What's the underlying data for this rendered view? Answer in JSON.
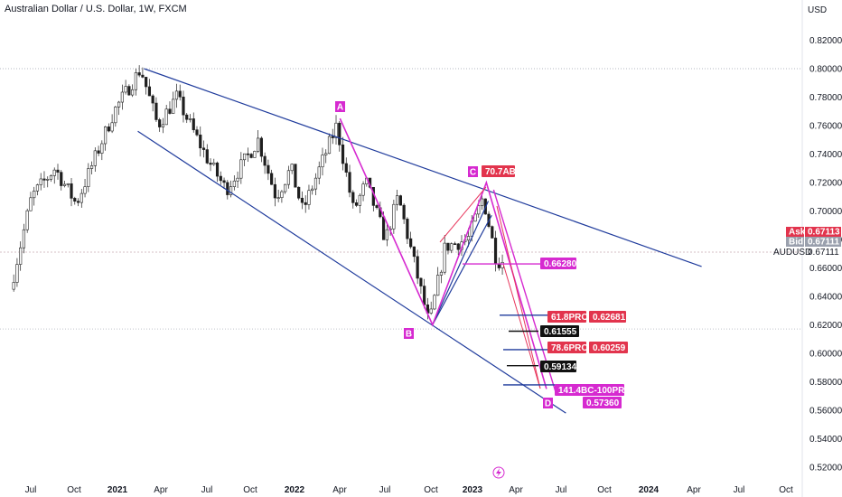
{
  "header": {
    "title": "Australian Dollar / U.S. Dollar, 1W, FXCM"
  },
  "price_axis": {
    "currency": "USD",
    "ticks": [
      "0.82000",
      "0.80000",
      "0.78000",
      "0.76000",
      "0.74000",
      "0.72000",
      "0.70000",
      "0.68000",
      "0.66000",
      "0.64000",
      "0.62000",
      "0.60000",
      "0.58000",
      "0.56000",
      "0.54000",
      "0.52000"
    ]
  },
  "quote": {
    "ask_label": "Ask",
    "ask_value": "0.67113",
    "bid_label": "Bid",
    "bid_value": "0.67111",
    "symbol": "AUDUSD",
    "last_value": "0.67111"
  },
  "time_axis": {
    "labels": [
      {
        "text": "Jul",
        "year": false
      },
      {
        "text": "Oct",
        "year": false
      },
      {
        "text": "2021",
        "year": true
      },
      {
        "text": "Apr",
        "year": false
      },
      {
        "text": "Jul",
        "year": false
      },
      {
        "text": "Oct",
        "year": false
      },
      {
        "text": "2022",
        "year": true
      },
      {
        "text": "Apr",
        "year": false
      },
      {
        "text": "Jul",
        "year": false
      },
      {
        "text": "Oct",
        "year": false
      },
      {
        "text": "2023",
        "year": true
      },
      {
        "text": "Apr",
        "year": false
      },
      {
        "text": "Jul",
        "year": false
      },
      {
        "text": "Oct",
        "year": false
      },
      {
        "text": "2024",
        "year": true
      },
      {
        "text": "Apr",
        "year": false
      },
      {
        "text": "Jul",
        "year": false
      },
      {
        "text": "Oct",
        "year": false
      }
    ]
  },
  "chart_data": {
    "type": "candlestick",
    "title": "Australian Dollar / U.S. Dollar, 1W, FXCM",
    "ylim": [
      0.51,
      0.835
    ],
    "price_path": [
      [
        "2020-06-01",
        0.645
      ],
      [
        "2020-07-15",
        0.71
      ],
      [
        "2020-09-01",
        0.73
      ],
      [
        "2020-10-15",
        0.705
      ],
      [
        "2021-01-01",
        0.77
      ],
      [
        "2021-02-25",
        0.8
      ],
      [
        "2021-04-01",
        0.76
      ],
      [
        "2021-05-10",
        0.78
      ],
      [
        "2021-06-15",
        0.755
      ],
      [
        "2021-07-15",
        0.735
      ],
      [
        "2021-08-20",
        0.715
      ],
      [
        "2021-10-25",
        0.75
      ],
      [
        "2021-12-01",
        0.71
      ],
      [
        "2022-01-01",
        0.73
      ],
      [
        "2022-01-25",
        0.7
      ],
      [
        "2022-04-05",
        0.76
      ],
      [
        "2022-05-10",
        0.7
      ],
      [
        "2022-06-05",
        0.72
      ],
      [
        "2022-07-15",
        0.68
      ],
      [
        "2022-08-10",
        0.71
      ],
      [
        "2022-10-13",
        0.62
      ],
      [
        "2022-11-15",
        0.675
      ],
      [
        "2023-01-01",
        0.68
      ],
      [
        "2023-02-01",
        0.71
      ],
      [
        "2023-03-01",
        0.665
      ],
      [
        "2023-03-10",
        0.665
      ]
    ],
    "trendlines": [
      {
        "from": [
          "2021-02-25",
          0.8
        ],
        "to": [
          "2024-04-20",
          0.661
        ]
      },
      {
        "from": [
          "2021-02-12",
          0.756
        ],
        "to": [
          "2023-07-15",
          0.558
        ]
      },
      {
        "from": [
          "2022-10-13",
          0.62
        ],
        "to": [
          "2023-02-05",
          0.707
        ]
      },
      {
        "from": [
          "2022-10-13",
          0.62
        ],
        "to": [
          "2023-02-12",
          0.697
        ]
      }
    ],
    "harmonic_points": [
      {
        "label": "A",
        "date": "2022-04-05",
        "value": 0.765
      },
      {
        "label": "B",
        "date": "2022-10-13",
        "value": 0.62
      },
      {
        "label": "C",
        "date": "2023-02-01",
        "value": 0.72
      },
      {
        "label": "D",
        "date": "2023-06-05",
        "value": 0.575
      }
    ],
    "annotations": {
      "c_tag": "70.7AB",
      "level_0_6628": "0.66280",
      "pro_61_8": "61.8PRO",
      "pro_61_8_value": "0.62681",
      "level_0_61555": "0.61555",
      "pro_78_6": "78.6PRO",
      "pro_78_6_value": "0.60259",
      "level_0_59134": "0.59134",
      "pro_141_4": "141.4BC-100PRO",
      "pro_141_4_value": "0.57360"
    },
    "colors": {
      "pattern": "#d62ad0",
      "trend": "#1f3b9c",
      "projection": "#e8365c",
      "label_red": "#e2344d",
      "label_black": "#111111",
      "label_magenta": "#d62ad0"
    }
  }
}
